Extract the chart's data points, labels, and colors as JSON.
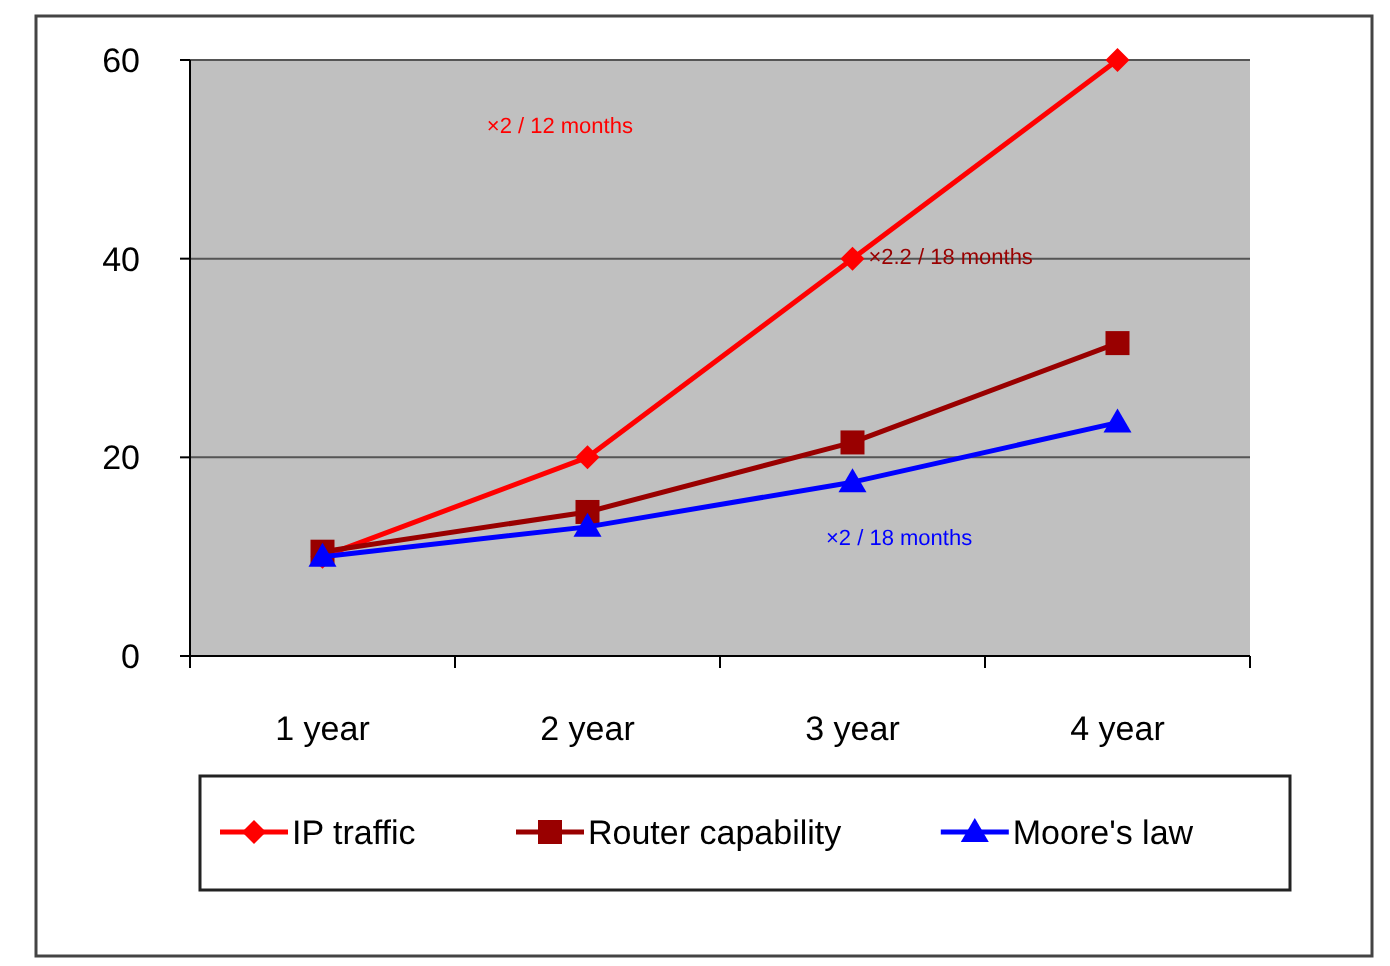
{
  "chart_data": {
    "type": "line",
    "categories": [
      "1 year",
      "2 year",
      "3 year",
      "4 year"
    ],
    "series": [
      {
        "name": "IP traffic",
        "color": "#ff0000",
        "values": [
          10,
          20,
          40,
          60
        ],
        "marker": "diamond"
      },
      {
        "name": "Router capability",
        "color": "#990000",
        "values": [
          10.5,
          14.5,
          21.5,
          31.5
        ],
        "marker": "square"
      },
      {
        "name": "Moore's law",
        "color": "#0000ff",
        "values": [
          10,
          13,
          17.5,
          23.5
        ],
        "marker": "triangle"
      }
    ],
    "ylim": [
      0,
      60
    ],
    "yticks": [
      0,
      20,
      40,
      60
    ],
    "grid": "y",
    "legend": "bottom",
    "annotations": [
      "×2 / 12 months",
      "×2.2 / 18 months",
      "×2 / 18 months"
    ]
  }
}
